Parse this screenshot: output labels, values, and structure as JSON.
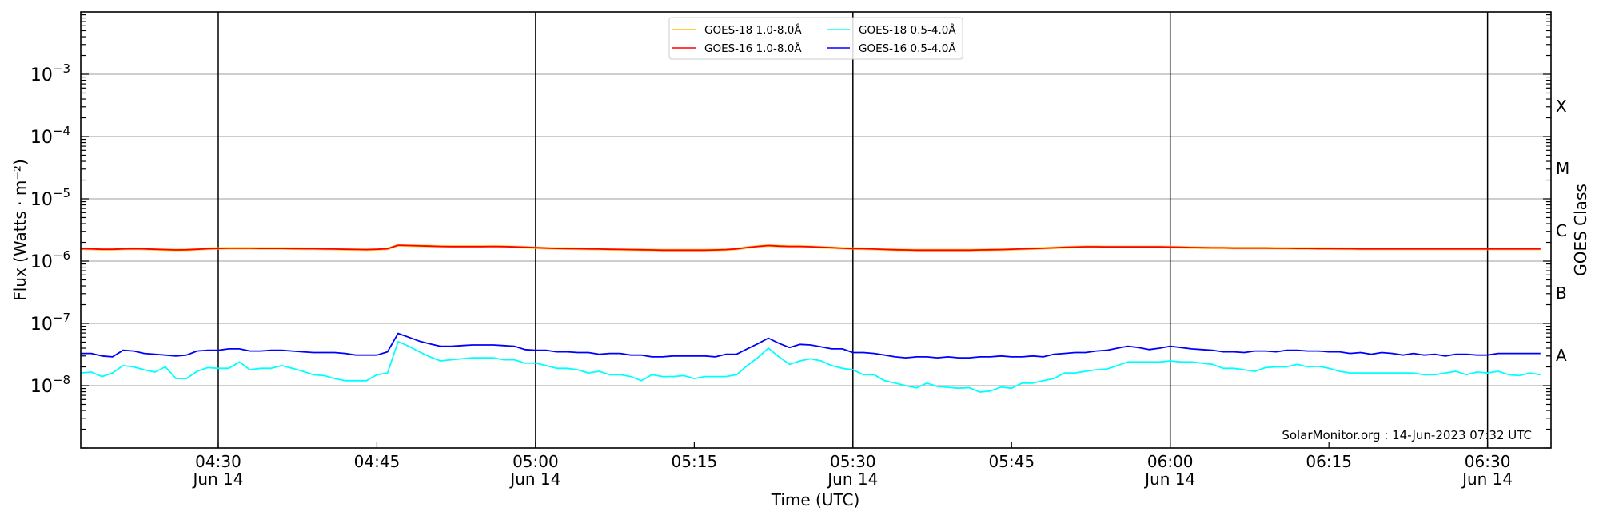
{
  "chart_data": {
    "type": "line",
    "title": "",
    "xlabel": "Time (UTC)",
    "ylabel": "Flux (Watts · m⁻²)",
    "right_ylabel": "GOES Class",
    "y_scale": "log",
    "ylim": [
      1e-09,
      0.01
    ],
    "xlim": [
      "04:17",
      "06:36"
    ],
    "date_label": "Jun 14",
    "grid": "horizontal at decades",
    "legend_placement": "top-center",
    "watermark": "SolarMonitor.org : 14-Jun-2023 07:32 UTC",
    "y_ticks": [
      {
        "value": 0.001,
        "base": "10",
        "exp": "−3"
      },
      {
        "value": 0.0001,
        "base": "10",
        "exp": "−4"
      },
      {
        "value": 1e-05,
        "base": "10",
        "exp": "−5"
      },
      {
        "value": 1e-06,
        "base": "10",
        "exp": "−6"
      },
      {
        "value": 1e-07,
        "base": "10",
        "exp": "−7"
      },
      {
        "value": 1e-08,
        "base": "10",
        "exp": "−8"
      }
    ],
    "x_ticks": [
      {
        "time": "04:30",
        "label": "04:30",
        "date": true
      },
      {
        "time": "04:45",
        "label": "04:45",
        "date": false
      },
      {
        "time": "05:00",
        "label": "05:00",
        "date": true
      },
      {
        "time": "05:15",
        "label": "05:15",
        "date": false
      },
      {
        "time": "05:30",
        "label": "05:30",
        "date": true
      },
      {
        "time": "05:45",
        "label": "05:45",
        "date": false
      },
      {
        "time": "06:00",
        "label": "06:00",
        "date": true
      },
      {
        "time": "06:15",
        "label": "06:15",
        "date": false
      },
      {
        "time": "06:30",
        "label": "06:30",
        "date": true
      }
    ],
    "vertical_lines": [
      "04:30",
      "05:00",
      "05:30",
      "06:00",
      "06:30"
    ],
    "goes_classes": [
      {
        "label": "A",
        "value": 3.16e-08
      },
      {
        "label": "B",
        "value": 3.16e-07
      },
      {
        "label": "C",
        "value": 3.16e-06
      },
      {
        "label": "M",
        "value": 3.16e-05
      },
      {
        "label": "X",
        "value": 0.000316
      }
    ],
    "x": [
      "04:17",
      "04:18",
      "04:19",
      "04:20",
      "04:21",
      "04:22",
      "04:23",
      "04:24",
      "04:25",
      "04:26",
      "04:27",
      "04:28",
      "04:29",
      "04:30",
      "04:31",
      "04:32",
      "04:33",
      "04:34",
      "04:35",
      "04:36",
      "04:37",
      "04:38",
      "04:39",
      "04:40",
      "04:41",
      "04:42",
      "04:43",
      "04:44",
      "04:45",
      "04:46",
      "04:47",
      "04:48",
      "04:49",
      "04:50",
      "04:51",
      "04:52",
      "04:53",
      "04:54",
      "04:55",
      "04:56",
      "04:57",
      "04:58",
      "04:59",
      "05:00",
      "05:01",
      "05:02",
      "05:03",
      "05:04",
      "05:05",
      "05:06",
      "05:07",
      "05:08",
      "05:09",
      "05:10",
      "05:11",
      "05:12",
      "05:13",
      "05:14",
      "05:15",
      "05:16",
      "05:17",
      "05:18",
      "05:19",
      "05:20",
      "05:21",
      "05:22",
      "05:23",
      "05:24",
      "05:25",
      "05:26",
      "05:27",
      "05:28",
      "05:29",
      "05:30",
      "05:31",
      "05:32",
      "05:33",
      "05:34",
      "05:35",
      "05:36",
      "05:37",
      "05:38",
      "05:39",
      "05:40",
      "05:41",
      "05:42",
      "05:43",
      "05:44",
      "05:45",
      "05:46",
      "05:47",
      "05:48",
      "05:49",
      "05:50",
      "05:51",
      "05:52",
      "05:53",
      "05:54",
      "05:55",
      "05:56",
      "05:57",
      "05:58",
      "05:59",
      "06:00",
      "06:01",
      "06:02",
      "06:03",
      "06:04",
      "06:05",
      "06:06",
      "06:07",
      "06:08",
      "06:09",
      "06:10",
      "06:11",
      "06:12",
      "06:13",
      "06:14",
      "06:15",
      "06:16",
      "06:17",
      "06:18",
      "06:19",
      "06:20",
      "06:21",
      "06:22",
      "06:23",
      "06:24",
      "06:25",
      "06:26",
      "06:27",
      "06:28",
      "06:29",
      "06:30",
      "06:31",
      "06:32",
      "06:33",
      "06:34",
      "06:35"
    ],
    "series": [
      {
        "name": "GOES-18 1.0-8.0Å",
        "color": "#ffc000",
        "values": [
          1.58e-06,
          1.57e-06,
          1.55e-06,
          1.55e-06,
          1.57e-06,
          1.58e-06,
          1.57e-06,
          1.55e-06,
          1.53e-06,
          1.51e-06,
          1.52e-06,
          1.55e-06,
          1.58e-06,
          1.6e-06,
          1.61e-06,
          1.61e-06,
          1.61e-06,
          1.6e-06,
          1.6e-06,
          1.6e-06,
          1.59e-06,
          1.58e-06,
          1.58e-06,
          1.57e-06,
          1.56e-06,
          1.55e-06,
          1.54e-06,
          1.53e-06,
          1.55e-06,
          1.58e-06,
          1.8e-06,
          1.78e-06,
          1.76e-06,
          1.74e-06,
          1.72e-06,
          1.71e-06,
          1.71e-06,
          1.71e-06,
          1.71e-06,
          1.72e-06,
          1.71e-06,
          1.69e-06,
          1.67e-06,
          1.64e-06,
          1.62e-06,
          1.6e-06,
          1.59e-06,
          1.58e-06,
          1.57e-06,
          1.56e-06,
          1.55e-06,
          1.54e-06,
          1.53e-06,
          1.52e-06,
          1.51e-06,
          1.5e-06,
          1.5e-06,
          1.5e-06,
          1.5e-06,
          1.5e-06,
          1.51e-06,
          1.53e-06,
          1.57e-06,
          1.65e-06,
          1.72e-06,
          1.78e-06,
          1.74e-06,
          1.72e-06,
          1.72e-06,
          1.7e-06,
          1.67e-06,
          1.64e-06,
          1.61e-06,
          1.59e-06,
          1.58e-06,
          1.56e-06,
          1.54e-06,
          1.52e-06,
          1.51e-06,
          1.5e-06,
          1.5e-06,
          1.5e-06,
          1.5e-06,
          1.5e-06,
          1.5e-06,
          1.51e-06,
          1.52e-06,
          1.53e-06,
          1.55e-06,
          1.57e-06,
          1.59e-06,
          1.61e-06,
          1.63e-06,
          1.66e-06,
          1.68e-06,
          1.7e-06,
          1.7e-06,
          1.69e-06,
          1.69e-06,
          1.69e-06,
          1.69e-06,
          1.69e-06,
          1.69e-06,
          1.68e-06,
          1.67e-06,
          1.65e-06,
          1.64e-06,
          1.63e-06,
          1.63e-06,
          1.62e-06,
          1.62e-06,
          1.62e-06,
          1.62e-06,
          1.61e-06,
          1.61e-06,
          1.6e-06,
          1.6e-06,
          1.59e-06,
          1.59e-06,
          1.58e-06,
          1.58e-06,
          1.57e-06,
          1.57e-06,
          1.57e-06,
          1.57e-06,
          1.57e-06,
          1.57e-06,
          1.57e-06,
          1.57e-06,
          1.57e-06,
          1.57e-06,
          1.57e-06,
          1.57e-06,
          1.57e-06,
          1.57e-06,
          1.57e-06,
          1.57e-06,
          1.57e-06,
          1.57e-06
        ]
      },
      {
        "name": "GOES-16 1.0-8.0Å",
        "color": "#ff0000",
        "values": [
          1.58e-06,
          1.57e-06,
          1.55e-06,
          1.55e-06,
          1.57e-06,
          1.58e-06,
          1.57e-06,
          1.55e-06,
          1.53e-06,
          1.51e-06,
          1.52e-06,
          1.55e-06,
          1.58e-06,
          1.6e-06,
          1.61e-06,
          1.61e-06,
          1.61e-06,
          1.6e-06,
          1.6e-06,
          1.6e-06,
          1.59e-06,
          1.58e-06,
          1.58e-06,
          1.57e-06,
          1.56e-06,
          1.55e-06,
          1.54e-06,
          1.53e-06,
          1.55e-06,
          1.58e-06,
          1.8e-06,
          1.78e-06,
          1.76e-06,
          1.74e-06,
          1.72e-06,
          1.71e-06,
          1.71e-06,
          1.71e-06,
          1.71e-06,
          1.72e-06,
          1.71e-06,
          1.69e-06,
          1.67e-06,
          1.64e-06,
          1.62e-06,
          1.6e-06,
          1.59e-06,
          1.58e-06,
          1.57e-06,
          1.56e-06,
          1.55e-06,
          1.54e-06,
          1.53e-06,
          1.52e-06,
          1.51e-06,
          1.5e-06,
          1.5e-06,
          1.5e-06,
          1.5e-06,
          1.5e-06,
          1.51e-06,
          1.53e-06,
          1.57e-06,
          1.65e-06,
          1.72e-06,
          1.78e-06,
          1.74e-06,
          1.72e-06,
          1.72e-06,
          1.7e-06,
          1.67e-06,
          1.64e-06,
          1.61e-06,
          1.59e-06,
          1.58e-06,
          1.56e-06,
          1.54e-06,
          1.52e-06,
          1.51e-06,
          1.5e-06,
          1.5e-06,
          1.5e-06,
          1.5e-06,
          1.5e-06,
          1.5e-06,
          1.51e-06,
          1.52e-06,
          1.53e-06,
          1.55e-06,
          1.57e-06,
          1.59e-06,
          1.61e-06,
          1.63e-06,
          1.66e-06,
          1.68e-06,
          1.7e-06,
          1.7e-06,
          1.69e-06,
          1.69e-06,
          1.69e-06,
          1.69e-06,
          1.69e-06,
          1.69e-06,
          1.68e-06,
          1.67e-06,
          1.65e-06,
          1.64e-06,
          1.63e-06,
          1.63e-06,
          1.62e-06,
          1.62e-06,
          1.62e-06,
          1.62e-06,
          1.61e-06,
          1.61e-06,
          1.6e-06,
          1.6e-06,
          1.59e-06,
          1.59e-06,
          1.58e-06,
          1.58e-06,
          1.57e-06,
          1.57e-06,
          1.57e-06,
          1.57e-06,
          1.57e-06,
          1.57e-06,
          1.57e-06,
          1.57e-06,
          1.57e-06,
          1.57e-06,
          1.57e-06,
          1.57e-06,
          1.57e-06,
          1.57e-06,
          1.57e-06,
          1.57e-06,
          1.57e-06,
          1.57e-06
        ]
      },
      {
        "name": "GOES-18 0.5-4.0Å",
        "color": "#00ffff",
        "values": [
          1.6e-08,
          1.65e-08,
          1.4e-08,
          1.6e-08,
          2.1e-08,
          2e-08,
          1.8e-08,
          1.65e-08,
          2e-08,
          1.3e-08,
          1.3e-08,
          1.7e-08,
          1.95e-08,
          1.9e-08,
          1.9e-08,
          2.4e-08,
          1.8e-08,
          1.9e-08,
          1.9e-08,
          2.1e-08,
          1.9e-08,
          1.7e-08,
          1.5e-08,
          1.45e-08,
          1.3e-08,
          1.2e-08,
          1.2e-08,
          1.2e-08,
          1.5e-08,
          1.6e-08,
          5.1e-08,
          4.3e-08,
          3.5e-08,
          2.9e-08,
          2.5e-08,
          2.6e-08,
          2.7e-08,
          2.8e-08,
          2.8e-08,
          2.8e-08,
          2.6e-08,
          2.6e-08,
          2.3e-08,
          2.3e-08,
          2.1e-08,
          1.9e-08,
          1.9e-08,
          1.8e-08,
          1.6e-08,
          1.7e-08,
          1.5e-08,
          1.5e-08,
          1.4e-08,
          1.2e-08,
          1.5e-08,
          1.4e-08,
          1.4e-08,
          1.45e-08,
          1.3e-08,
          1.4e-08,
          1.4e-08,
          1.4e-08,
          1.5e-08,
          2.1e-08,
          2.8e-08,
          4e-08,
          2.9e-08,
          2.2e-08,
          2.5e-08,
          2.7e-08,
          2.5e-08,
          2.1e-08,
          1.9e-08,
          1.8e-08,
          1.5e-08,
          1.5e-08,
          1.2e-08,
          1.1e-08,
          1e-08,
          9.2e-09,
          1.1e-08,
          9.7e-09,
          9.4e-09,
          9.1e-09,
          9.3e-09,
          7.9e-09,
          8.2e-09,
          9.5e-09,
          9.1e-09,
          1.1e-08,
          1.1e-08,
          1.2e-08,
          1.3e-08,
          1.6e-08,
          1.6e-08,
          1.7e-08,
          1.8e-08,
          1.85e-08,
          2.1e-08,
          2.4e-08,
          2.4e-08,
          2.4e-08,
          2.4e-08,
          2.5e-08,
          2.4e-08,
          2.4e-08,
          2.3e-08,
          2.2e-08,
          1.9e-08,
          1.9e-08,
          1.8e-08,
          1.7e-08,
          1.95e-08,
          2e-08,
          2e-08,
          2.2e-08,
          2e-08,
          2.05e-08,
          1.9e-08,
          1.7e-08,
          1.6e-08,
          1.6e-08,
          1.6e-08,
          1.6e-08,
          1.6e-08,
          1.6e-08,
          1.6e-08,
          1.5e-08,
          1.5e-08,
          1.6e-08,
          1.7e-08,
          1.5e-08,
          1.65e-08,
          1.6e-08,
          1.7e-08,
          1.5e-08,
          1.45e-08,
          1.6e-08,
          1.5e-08
        ]
      },
      {
        "name": "GOES-16 0.5-4.0Å",
        "color": "#0000ff",
        "values": [
          3.3e-08,
          3.3e-08,
          3e-08,
          2.9e-08,
          3.7e-08,
          3.6e-08,
          3.3e-08,
          3.2e-08,
          3.1e-08,
          3e-08,
          3.1e-08,
          3.6e-08,
          3.7e-08,
          3.7e-08,
          3.9e-08,
          3.9e-08,
          3.6e-08,
          3.6e-08,
          3.7e-08,
          3.7e-08,
          3.6e-08,
          3.5e-08,
          3.4e-08,
          3.4e-08,
          3.4e-08,
          3.3e-08,
          3.1e-08,
          3.1e-08,
          3.1e-08,
          3.5e-08,
          6.9e-08,
          6e-08,
          5.2e-08,
          4.7e-08,
          4.3e-08,
          4.3e-08,
          4.4e-08,
          4.5e-08,
          4.5e-08,
          4.5e-08,
          4.4e-08,
          4.3e-08,
          3.8e-08,
          3.7e-08,
          3.7e-08,
          3.5e-08,
          3.5e-08,
          3.4e-08,
          3.4e-08,
          3.2e-08,
          3.3e-08,
          3.3e-08,
          3.1e-08,
          3.1e-08,
          2.9e-08,
          2.9e-08,
          3e-08,
          3e-08,
          3e-08,
          3e-08,
          2.9e-08,
          3.2e-08,
          3.2e-08,
          3.9e-08,
          4.7e-08,
          5.8e-08,
          4.8e-08,
          4.1e-08,
          4.6e-08,
          4.5e-08,
          4.2e-08,
          3.9e-08,
          3.9e-08,
          3.4e-08,
          3.4e-08,
          3.3e-08,
          3.1e-08,
          2.9e-08,
          2.8e-08,
          2.9e-08,
          2.9e-08,
          2.8e-08,
          2.9e-08,
          2.8e-08,
          2.8e-08,
          2.9e-08,
          2.9e-08,
          3e-08,
          2.9e-08,
          2.9e-08,
          3e-08,
          2.9e-08,
          3.2e-08,
          3.3e-08,
          3.4e-08,
          3.4e-08,
          3.6e-08,
          3.7e-08,
          4e-08,
          4.3e-08,
          4.1e-08,
          3.8e-08,
          4e-08,
          4.3e-08,
          4.1e-08,
          3.9e-08,
          3.8e-08,
          3.7e-08,
          3.5e-08,
          3.5e-08,
          3.4e-08,
          3.6e-08,
          3.6e-08,
          3.5e-08,
          3.7e-08,
          3.7e-08,
          3.6e-08,
          3.6e-08,
          3.5e-08,
          3.5e-08,
          3.3e-08,
          3.4e-08,
          3.2e-08,
          3.4e-08,
          3.3e-08,
          3.1e-08,
          3.3e-08,
          3.1e-08,
          3.2e-08,
          3e-08,
          3.2e-08,
          3.2e-08,
          3.1e-08,
          3.1e-08,
          3.3e-08,
          3.3e-08,
          3.3e-08,
          3.3e-08,
          3.3e-08
        ]
      }
    ]
  }
}
